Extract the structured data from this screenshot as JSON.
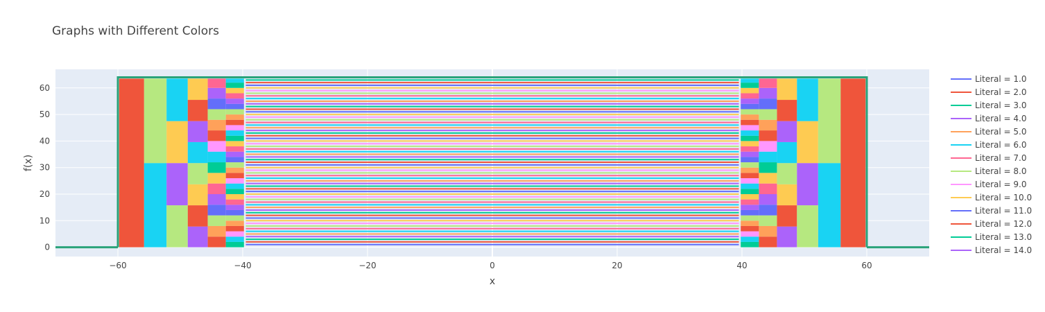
{
  "chart_data": {
    "type": "line",
    "title": "Graphs with Different Colors",
    "xlabel": "x",
    "ylabel": "f(x)",
    "xlim": [
      -70,
      70
    ],
    "ylim": [
      -3.5,
      67
    ],
    "x_ticks": [
      -60,
      -40,
      -20,
      0,
      20,
      40,
      60
    ],
    "x_tick_labels": [
      "−60",
      "−40",
      "−20",
      "0",
      "20",
      "40",
      "60"
    ],
    "y_ticks": [
      0,
      10,
      20,
      30,
      40,
      50,
      60
    ],
    "y_tick_labels": [
      "0",
      "10",
      "20",
      "30",
      "40",
      "50",
      "60"
    ],
    "grid": true,
    "legend_position": "right",
    "series": [
      {
        "name": "Literal = 1.0",
        "color": "#636efa"
      },
      {
        "name": "Literal = 2.0",
        "color": "#EF553B"
      },
      {
        "name": "Literal = 3.0",
        "color": "#00cc96"
      },
      {
        "name": "Literal = 4.0",
        "color": "#ab63fa"
      },
      {
        "name": "Literal = 5.0",
        "color": "#FFA15A"
      },
      {
        "name": "Literal = 6.0",
        "color": "#19d3f3"
      },
      {
        "name": "Literal = 7.0",
        "color": "#FF6692"
      },
      {
        "name": "Literal = 8.0",
        "color": "#B6E880"
      },
      {
        "name": "Literal = 9.0",
        "color": "#FF97FF"
      },
      {
        "name": "Literal = 10.0",
        "color": "#FECB52"
      },
      {
        "name": "Literal = 11.0",
        "color": "#636efa"
      },
      {
        "name": "Literal = 12.0",
        "color": "#EF553B"
      },
      {
        "name": "Literal = 13.0",
        "color": "#00cc96"
      },
      {
        "name": "Literal = 14.0",
        "color": "#ab63fa"
      }
    ],
    "palette": [
      "#636efa",
      "#EF553B",
      "#00cc96",
      "#ab63fa",
      "#FFA15A",
      "#19d3f3",
      "#FF6692",
      "#B6E880",
      "#FF97FF",
      "#FECB52"
    ],
    "outer_envelope": {
      "x_start": -60,
      "x_end": 60,
      "y_top": 64,
      "color": "#2aa37a"
    },
    "center_band": {
      "x_start": -39.5,
      "x_end": 39.5,
      "y_start": 1,
      "y_end": 63,
      "step": 1
    },
    "left_blocks": [
      {
        "x0": -59.8,
        "x1": -55.8,
        "y0": 0,
        "y1": 63.5,
        "color": "#EF553B"
      },
      {
        "x0": -55.8,
        "x1": -52.2,
        "y0": 0,
        "y1": 31.7,
        "color": "#19d3f3"
      },
      {
        "x0": -55.8,
        "x1": -52.2,
        "y0": 31.7,
        "y1": 63.5,
        "color": "#B6E880"
      },
      {
        "x0": -52.2,
        "x1": -48.8,
        "y0": 0,
        "y1": 15.8,
        "color": "#B6E880"
      },
      {
        "x0": -52.2,
        "x1": -48.8,
        "y0": 15.8,
        "y1": 31.7,
        "color": "#ab63fa"
      },
      {
        "x0": -52.2,
        "x1": -48.8,
        "y0": 31.7,
        "y1": 47.5,
        "color": "#FECB52"
      },
      {
        "x0": -52.2,
        "x1": -48.8,
        "y0": 47.5,
        "y1": 63.5,
        "color": "#19d3f3"
      },
      {
        "x0": -48.8,
        "x1": -45.6,
        "y0": 0,
        "y1": 7.8,
        "color": "#ab63fa"
      },
      {
        "x0": -48.8,
        "x1": -45.6,
        "y0": 7.8,
        "y1": 15.8,
        "color": "#EF553B"
      },
      {
        "x0": -48.8,
        "x1": -45.6,
        "y0": 15.8,
        "y1": 23.7,
        "color": "#FECB52"
      },
      {
        "x0": -48.8,
        "x1": -45.6,
        "y0": 23.7,
        "y1": 31.7,
        "color": "#B6E880"
      },
      {
        "x0": -48.8,
        "x1": -45.6,
        "y0": 31.7,
        "y1": 39.6,
        "color": "#19d3f3"
      },
      {
        "x0": -48.8,
        "x1": -45.6,
        "y0": 39.6,
        "y1": 47.5,
        "color": "#ab63fa"
      },
      {
        "x0": -48.8,
        "x1": -45.6,
        "y0": 47.5,
        "y1": 55.5,
        "color": "#EF553B"
      },
      {
        "x0": -48.8,
        "x1": -45.6,
        "y0": 55.5,
        "y1": 63.5,
        "color": "#FECB52"
      }
    ],
    "right_blocks": [
      {
        "x0": 55.8,
        "x1": 59.8,
        "y0": 0,
        "y1": 63.5,
        "color": "#EF553B"
      },
      {
        "x0": 52.2,
        "x1": 55.8,
        "y0": 0,
        "y1": 31.7,
        "color": "#19d3f3"
      },
      {
        "x0": 52.2,
        "x1": 55.8,
        "y0": 31.7,
        "y1": 63.5,
        "color": "#B6E880"
      },
      {
        "x0": 48.8,
        "x1": 52.2,
        "y0": 0,
        "y1": 15.8,
        "color": "#B6E880"
      },
      {
        "x0": 48.8,
        "x1": 52.2,
        "y0": 15.8,
        "y1": 31.7,
        "color": "#ab63fa"
      },
      {
        "x0": 48.8,
        "x1": 52.2,
        "y0": 31.7,
        "y1": 47.5,
        "color": "#FECB52"
      },
      {
        "x0": 48.8,
        "x1": 52.2,
        "y0": 47.5,
        "y1": 63.5,
        "color": "#19d3f3"
      },
      {
        "x0": 45.6,
        "x1": 48.8,
        "y0": 0,
        "y1": 7.8,
        "color": "#ab63fa"
      },
      {
        "x0": 45.6,
        "x1": 48.8,
        "y0": 7.8,
        "y1": 15.8,
        "color": "#EF553B"
      },
      {
        "x0": 45.6,
        "x1": 48.8,
        "y0": 15.8,
        "y1": 23.7,
        "color": "#FECB52"
      },
      {
        "x0": 45.6,
        "x1": 48.8,
        "y0": 23.7,
        "y1": 31.7,
        "color": "#B6E880"
      },
      {
        "x0": 45.6,
        "x1": 48.8,
        "y0": 31.7,
        "y1": 39.6,
        "color": "#19d3f3"
      },
      {
        "x0": 45.6,
        "x1": 48.8,
        "y0": 39.6,
        "y1": 47.5,
        "color": "#ab63fa"
      },
      {
        "x0": 45.6,
        "x1": 48.8,
        "y0": 47.5,
        "y1": 55.5,
        "color": "#EF553B"
      },
      {
        "x0": 45.6,
        "x1": 48.8,
        "y0": 55.5,
        "y1": 63.5,
        "color": "#FECB52"
      }
    ],
    "inner_left_columns": [
      {
        "x0": -45.6,
        "x1": -42.7,
        "h": 4
      },
      {
        "x0": -42.7,
        "x1": -39.8,
        "h": 2
      }
    ],
    "inner_right_columns": [
      {
        "x0": 42.7,
        "x1": 45.6,
        "h": 4
      },
      {
        "x0": 39.8,
        "x1": 42.7,
        "h": 2
      }
    ]
  }
}
